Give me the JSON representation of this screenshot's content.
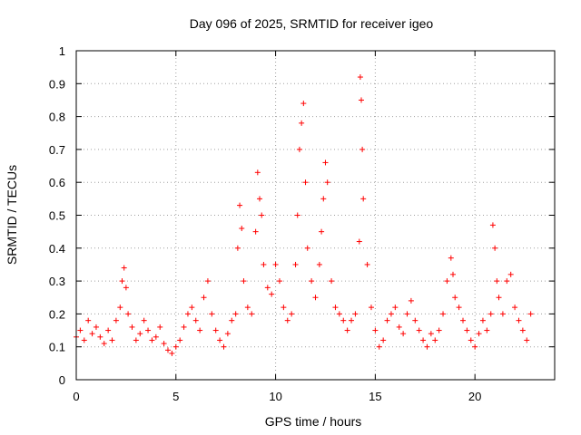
{
  "chart_data": {
    "type": "scatter",
    "title": "Day 096 of 2025, SRMTID for receiver igeo",
    "xlabel": "GPS time / hours",
    "ylabel": "SRMTID / TECUs",
    "xlim": [
      0,
      24
    ],
    "ylim": [
      0,
      1
    ],
    "x_ticks": [
      0,
      5,
      10,
      15,
      20
    ],
    "x_tick_labels": [
      "0",
      "5",
      "10",
      "15",
      "20"
    ],
    "y_ticks": [
      0,
      0.1,
      0.2,
      0.3,
      0.4,
      0.5,
      0.6,
      0.7,
      0.8,
      0.9,
      1
    ],
    "y_tick_labels": [
      "0",
      "0.1",
      "0.2",
      "0.3",
      "0.4",
      "0.5",
      "0.6",
      "0.7",
      "0.8",
      "0.9",
      "1"
    ],
    "grid": true,
    "marker": "+",
    "marker_color": "#ff0000",
    "series": [
      {
        "name": "SRMTID",
        "x": [
          0.0,
          0.2,
          0.4,
          0.6,
          0.8,
          1.0,
          1.2,
          1.4,
          1.6,
          1.8,
          2.0,
          2.2,
          2.3,
          2.4,
          2.5,
          2.6,
          2.8,
          3.0,
          3.2,
          3.4,
          3.6,
          3.8,
          4.0,
          4.2,
          4.4,
          4.6,
          4.8,
          5.0,
          5.2,
          5.4,
          5.6,
          5.8,
          6.0,
          6.2,
          6.4,
          6.6,
          6.8,
          7.0,
          7.2,
          7.4,
          7.6,
          7.8,
          8.0,
          8.1,
          8.2,
          8.3,
          8.4,
          8.6,
          8.8,
          9.0,
          9.1,
          9.2,
          9.3,
          9.4,
          9.6,
          9.8,
          10.0,
          10.2,
          10.4,
          10.6,
          10.8,
          11.0,
          11.1,
          11.2,
          11.3,
          11.4,
          11.5,
          11.6,
          11.8,
          12.0,
          12.2,
          12.3,
          12.4,
          12.5,
          12.6,
          12.8,
          13.0,
          13.2,
          13.4,
          13.6,
          13.8,
          14.0,
          14.2,
          14.25,
          14.3,
          14.35,
          14.4,
          14.6,
          14.8,
          15.0,
          15.2,
          15.4,
          15.6,
          15.8,
          16.0,
          16.2,
          16.4,
          16.6,
          16.8,
          17.0,
          17.2,
          17.4,
          17.6,
          17.8,
          18.0,
          18.2,
          18.4,
          18.6,
          18.8,
          18.9,
          19.0,
          19.2,
          19.4,
          19.6,
          19.8,
          20.0,
          20.2,
          20.4,
          20.6,
          20.8,
          20.9,
          21.0,
          21.1,
          21.2,
          21.4,
          21.6,
          21.8,
          22.0,
          22.2,
          22.4,
          22.6,
          22.8
        ],
        "y": [
          0.13,
          0.15,
          0.12,
          0.18,
          0.14,
          0.16,
          0.13,
          0.11,
          0.15,
          0.12,
          0.18,
          0.22,
          0.3,
          0.34,
          0.28,
          0.2,
          0.16,
          0.12,
          0.14,
          0.18,
          0.15,
          0.12,
          0.13,
          0.16,
          0.11,
          0.09,
          0.08,
          0.1,
          0.12,
          0.16,
          0.2,
          0.22,
          0.18,
          0.15,
          0.25,
          0.3,
          0.2,
          0.15,
          0.12,
          0.1,
          0.14,
          0.18,
          0.2,
          0.4,
          0.53,
          0.46,
          0.3,
          0.22,
          0.2,
          0.45,
          0.63,
          0.55,
          0.5,
          0.35,
          0.28,
          0.26,
          0.35,
          0.3,
          0.22,
          0.18,
          0.2,
          0.35,
          0.5,
          0.7,
          0.78,
          0.84,
          0.6,
          0.4,
          0.3,
          0.25,
          0.35,
          0.45,
          0.55,
          0.66,
          0.6,
          0.3,
          0.22,
          0.2,
          0.18,
          0.15,
          0.18,
          0.2,
          0.42,
          0.92,
          0.85,
          0.7,
          0.55,
          0.35,
          0.22,
          0.15,
          0.1,
          0.12,
          0.18,
          0.2,
          0.22,
          0.16,
          0.14,
          0.2,
          0.24,
          0.18,
          0.15,
          0.12,
          0.1,
          0.14,
          0.12,
          0.15,
          0.2,
          0.3,
          0.37,
          0.32,
          0.25,
          0.22,
          0.18,
          0.15,
          0.12,
          0.1,
          0.14,
          0.18,
          0.15,
          0.2,
          0.47,
          0.4,
          0.3,
          0.25,
          0.2,
          0.3,
          0.32,
          0.22,
          0.18,
          0.15,
          0.12,
          0.2
        ]
      }
    ]
  }
}
